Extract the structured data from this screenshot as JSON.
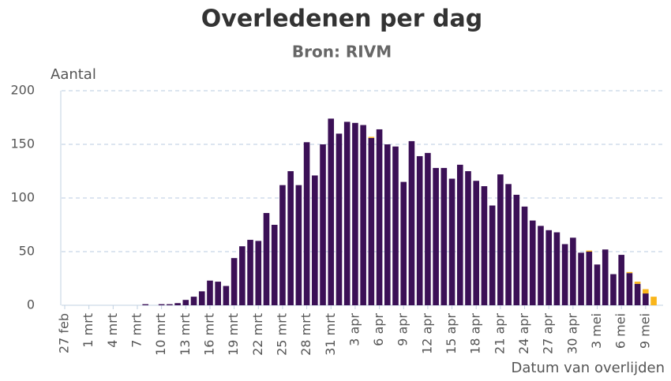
{
  "chart_data": {
    "type": "stacked_bar",
    "title": "Overledenen per dag",
    "subtitle": "Bron: RIVM",
    "y_label": "Aantal",
    "x_label": "Datum van overlijden",
    "categories": [
      "27 feb",
      null,
      null,
      "1 mrt",
      null,
      null,
      "4 mrt",
      null,
      null,
      "7 mrt",
      null,
      null,
      "10 mrt",
      null,
      null,
      "13 mrt",
      null,
      null,
      "16 mrt",
      null,
      null,
      "19 mrt",
      null,
      null,
      "22 mrt",
      null,
      null,
      "25 mrt",
      null,
      null,
      "28 mrt",
      null,
      null,
      "31 mrt",
      null,
      null,
      "3 apr",
      null,
      null,
      "6 apr",
      null,
      null,
      "9 apr",
      null,
      null,
      "12 apr",
      null,
      null,
      "15 apr",
      null,
      null,
      "18 apr",
      null,
      null,
      "21 apr",
      null,
      null,
      "24 apr",
      null,
      null,
      "27 apr",
      null,
      null,
      "30 apr",
      null,
      null,
      "3 mei",
      null,
      null,
      "6 mei",
      null,
      null,
      "9 mei",
      null
    ],
    "series": [
      {
        "color": "#3b1056",
        "values": [
          0,
          0,
          0,
          0,
          0,
          0,
          0,
          0,
          0,
          0,
          1,
          0,
          1,
          1,
          2,
          5,
          8,
          13,
          23,
          22,
          18,
          44,
          55,
          61,
          60,
          86,
          75,
          112,
          125,
          112,
          152,
          121,
          150,
          174,
          160,
          171,
          170,
          168,
          156,
          164,
          150,
          148,
          115,
          153,
          139,
          142,
          128,
          128,
          118,
          131,
          125,
          116,
          111,
          93,
          122,
          113,
          103,
          92,
          79,
          74,
          70,
          68,
          57,
          63,
          49,
          50,
          38,
          52,
          29,
          47,
          30,
          20,
          11,
          0
        ]
      },
      {
        "color": "#f9b51b",
        "values": [
          0,
          0,
          0,
          0,
          0,
          0,
          0,
          0,
          0,
          0,
          0,
          0,
          0,
          0,
          0,
          0,
          0,
          0,
          0,
          0,
          0,
          0,
          0,
          0,
          0,
          0,
          0,
          0,
          0,
          0,
          0,
          0,
          0,
          0,
          0,
          0,
          0,
          0,
          1,
          0,
          0,
          0,
          0,
          0,
          0,
          0,
          0,
          0,
          0,
          0,
          0,
          0,
          0,
          0,
          0,
          0,
          0,
          0,
          0,
          0,
          0,
          0,
          0,
          0,
          0,
          1,
          0,
          0,
          0,
          0,
          1,
          2,
          4,
          8
        ]
      }
    ],
    "ylim": [
      0,
      200
    ],
    "yticks": [
      0,
      50,
      100,
      150,
      200
    ],
    "grid": true
  }
}
